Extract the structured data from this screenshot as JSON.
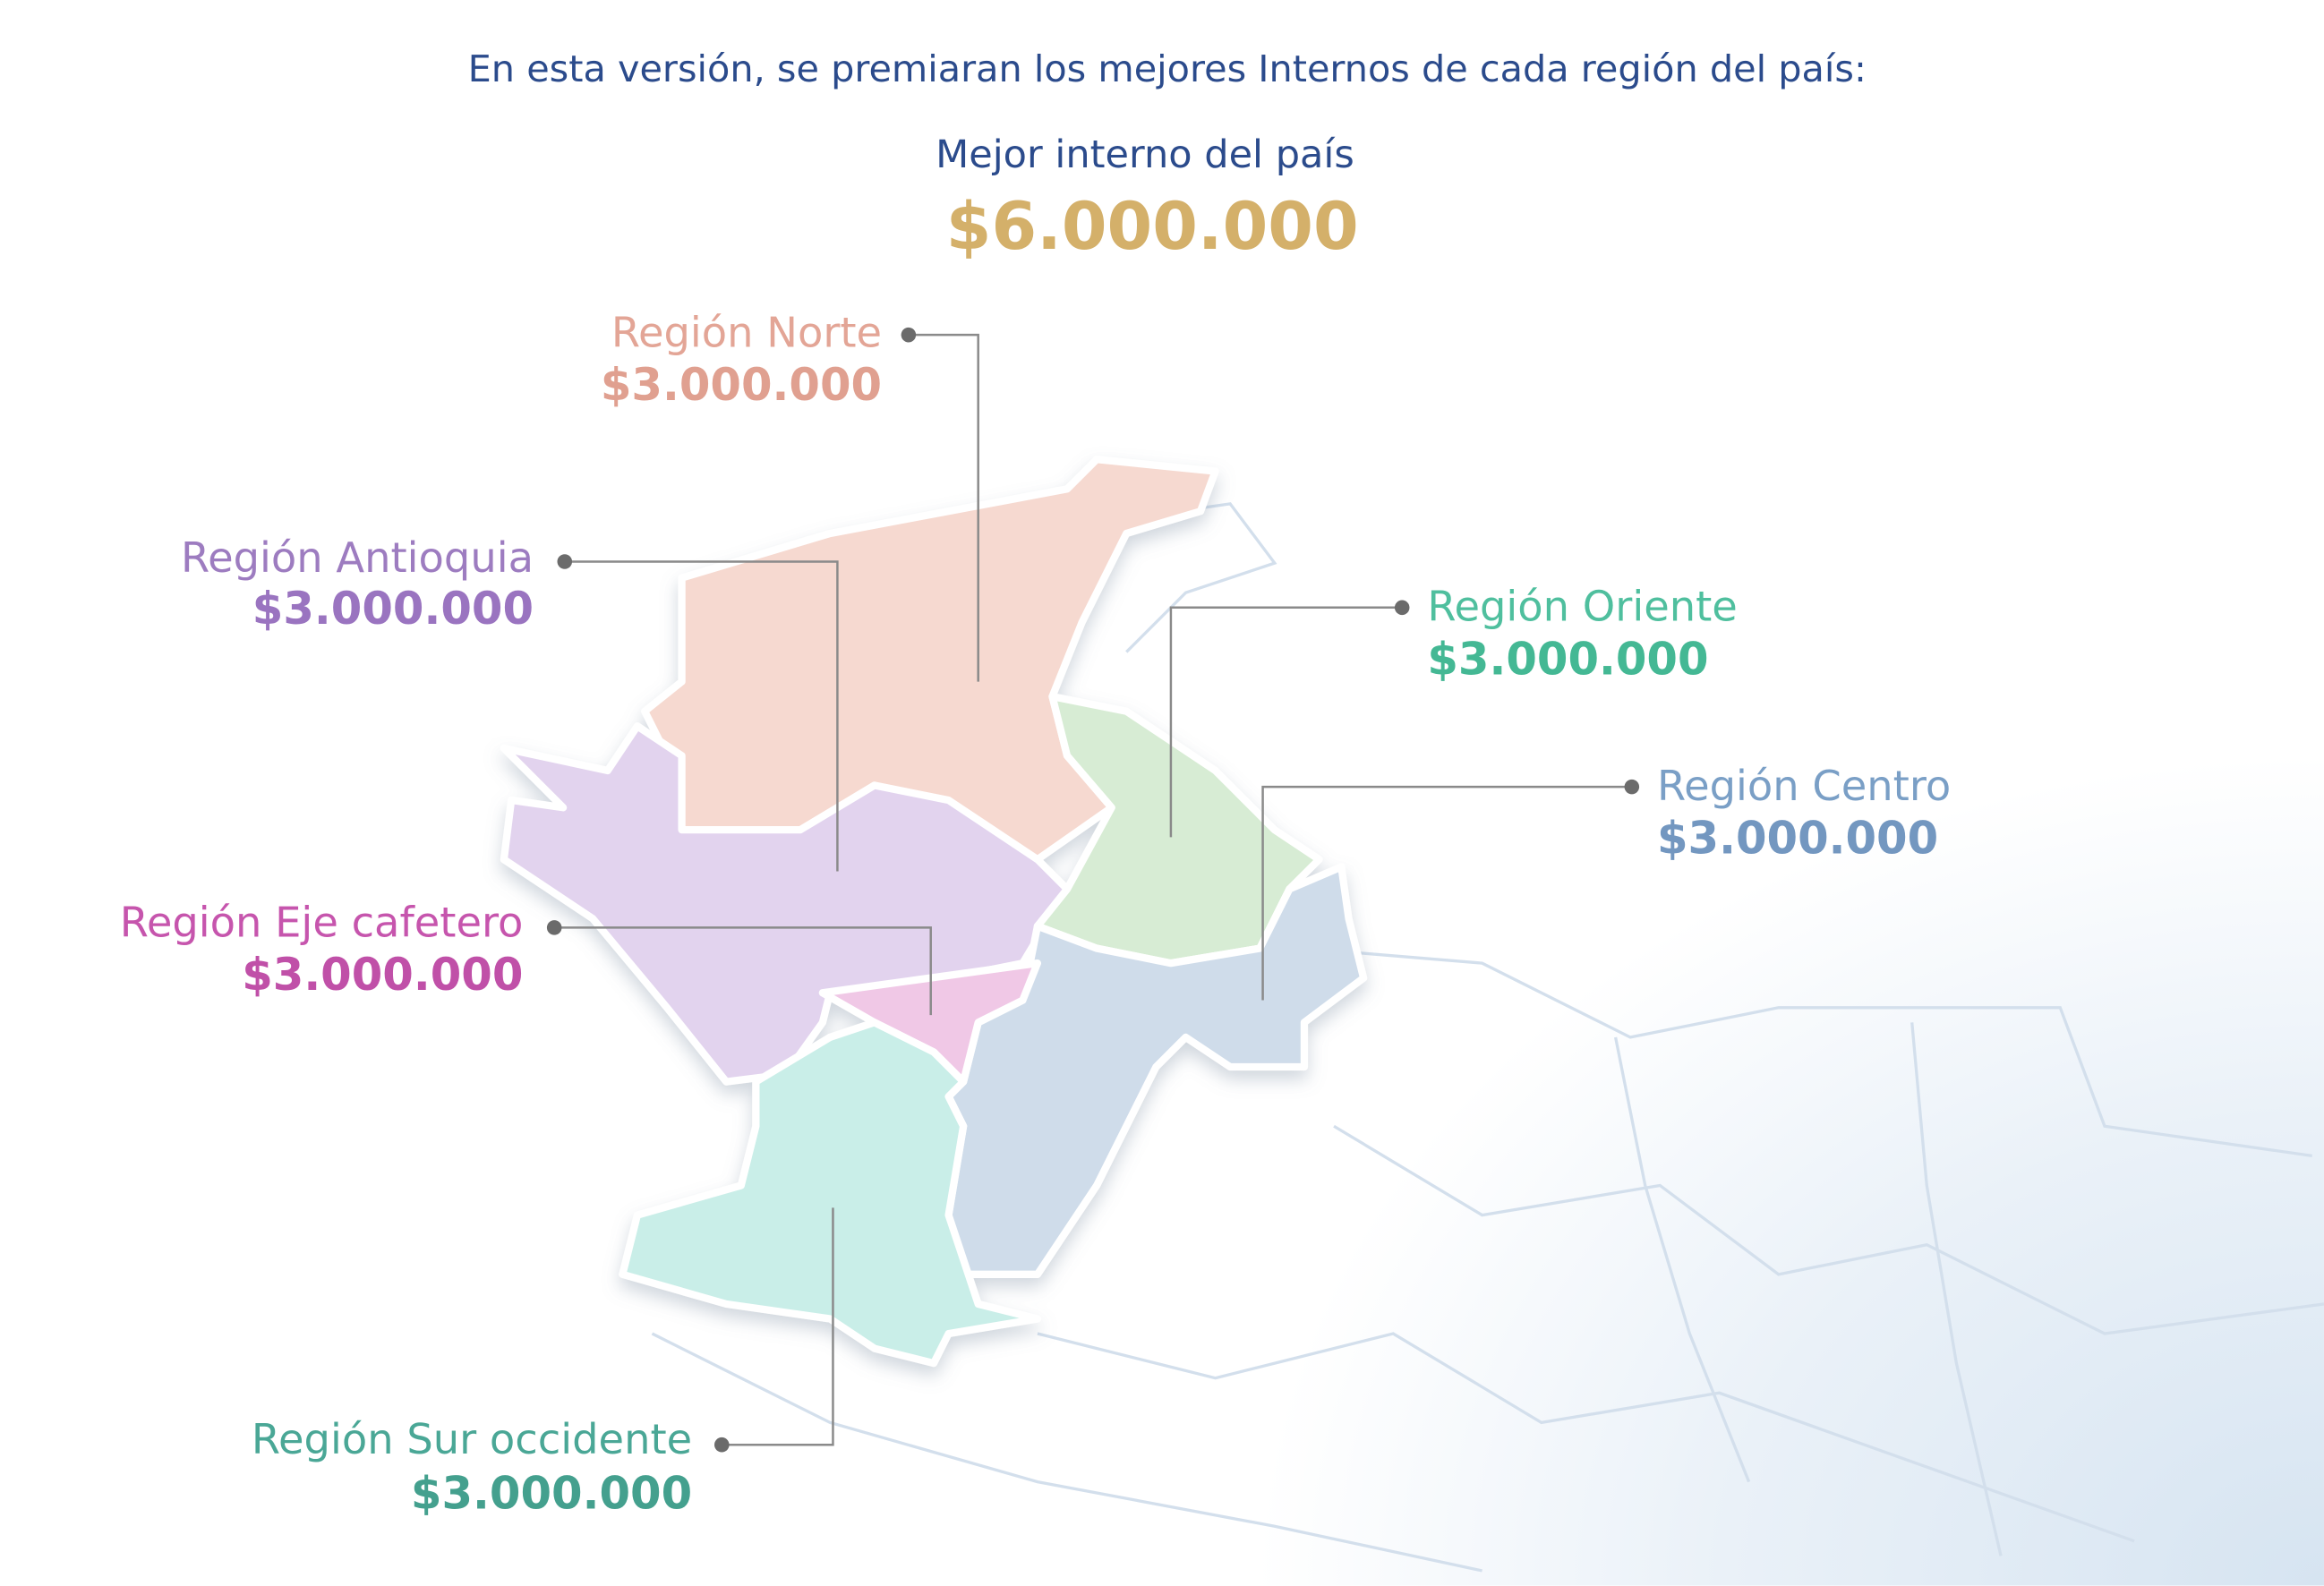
{
  "intro": "En esta versión, se premiaran los mejores Internos de cada región del país:",
  "best": {
    "label": "Mejor interno del país",
    "amount": "$6.000.000",
    "color": "#d4b06a"
  },
  "regions": [
    {
      "name": "Región Norte",
      "amount": "$3.000.000",
      "color": "#e3a596",
      "fill": "#f6d9d0"
    },
    {
      "name": "Región Antioquia",
      "amount": "$3.000.000",
      "color": "#9d7cc0",
      "fill": "#e2d3ee"
    },
    {
      "name": "Región Oriente",
      "amount": "$3.000.000",
      "color": "#4fbf9e",
      "fill": "#d7ecd4"
    },
    {
      "name": "Región Centro",
      "amount": "$3.000.000",
      "color": "#7a9fc6",
      "fill": "#cfdcea"
    },
    {
      "name": "Región Eje cafetero",
      "amount": "$3.000.000",
      "color": "#c655ad",
      "fill": "#f0c8e6"
    },
    {
      "name": "Región Sur occidente",
      "amount": "$3.000.000",
      "color": "#4aa796",
      "fill": "#c9eee8"
    }
  ]
}
